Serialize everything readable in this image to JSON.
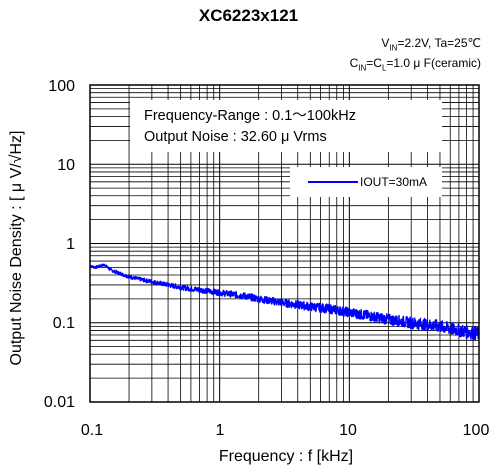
{
  "chart_data": {
    "type": "line",
    "title": "XC6223x121",
    "conditions": {
      "line1": "V_IN=2.2V, Ta=25℃",
      "line2": "C_IN=C_L=1.0 μ F(ceramic)"
    },
    "xlabel": "Frequency : f [kHz]",
    "ylabel": "Output Noise Density : [ μ V/√Hz]",
    "x_scale": "log",
    "y_scale": "log",
    "xlim": [
      0.1,
      100
    ],
    "ylim": [
      0.01,
      100
    ],
    "x_ticks": [
      "0.1",
      "1",
      "10",
      "100"
    ],
    "y_ticks": [
      "100",
      "10",
      "1",
      "0.1",
      "0.01"
    ],
    "grid": true,
    "annotation_lines": [
      "Frequency-Range : 0.1～100kHz",
      "Output Noise :  32.60 μ Vrms"
    ],
    "legend_position": "upper-right",
    "series": [
      {
        "name": "IOUT=30mA",
        "color": "#0000ff",
        "x": [
          0.1,
          0.11,
          0.12,
          0.13,
          0.14,
          0.15,
          0.17,
          0.2,
          0.25,
          0.3,
          0.4,
          0.5,
          0.7,
          1,
          1.5,
          2,
          3,
          5,
          7,
          10,
          15,
          20,
          30,
          50,
          70,
          100
        ],
        "y": [
          0.52,
          0.5,
          0.52,
          0.54,
          0.48,
          0.45,
          0.42,
          0.38,
          0.35,
          0.33,
          0.3,
          0.28,
          0.26,
          0.24,
          0.22,
          0.2,
          0.18,
          0.16,
          0.15,
          0.135,
          0.12,
          0.11,
          0.1,
          0.09,
          0.08,
          0.072
        ]
      }
    ]
  }
}
